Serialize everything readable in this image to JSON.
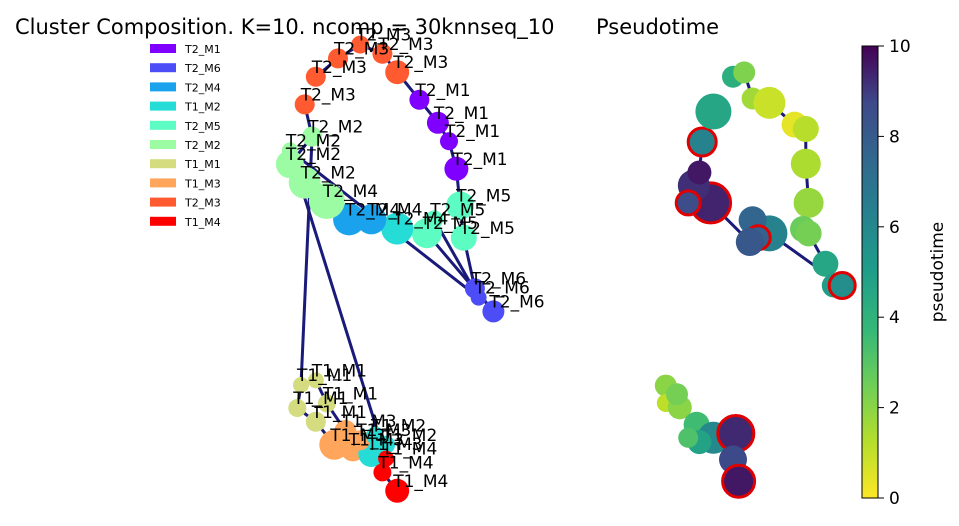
{
  "chart_data": [
    {
      "type": "scatter",
      "title": "Cluster Composition. K=10. ncomp = 30knnseq_10",
      "legend": {
        "placement": "top-left",
        "entries": [
          {
            "name": "T2_M1",
            "color": "#7f00ff"
          },
          {
            "name": "T2_M6",
            "color": "#4d4df8"
          },
          {
            "name": "T2_M4",
            "color": "#1aa3ec"
          },
          {
            "name": "T1_M2",
            "color": "#26dcd6"
          },
          {
            "name": "T2_M5",
            "color": "#5cfcc2"
          },
          {
            "name": "T2_M2",
            "color": "#9cfca4"
          },
          {
            "name": "T1_M1",
            "color": "#d4dc7f"
          },
          {
            "name": "T1_M3",
            "color": "#ffa65c"
          },
          {
            "name": "T2_M3",
            "color": "#ff5a30"
          },
          {
            "name": "T1_M4",
            "color": "#ff0000"
          }
        ]
      },
      "edges": [
        [
          0,
          1
        ],
        [
          1,
          2
        ],
        [
          2,
          3
        ],
        [
          3,
          4
        ],
        [
          4,
          5
        ],
        [
          5,
          6
        ],
        [
          6,
          7
        ],
        [
          7,
          8
        ],
        [
          8,
          9
        ],
        [
          9,
          10
        ],
        [
          10,
          11
        ],
        [
          11,
          12
        ],
        [
          12,
          13
        ],
        [
          13,
          14
        ],
        [
          14,
          15
        ],
        [
          15,
          16
        ],
        [
          16,
          17
        ],
        [
          17,
          18
        ],
        [
          18,
          19
        ],
        [
          19,
          20
        ],
        [
          20,
          21
        ],
        [
          20,
          22
        ],
        [
          22,
          23
        ],
        [
          23,
          24
        ],
        [
          24,
          25
        ],
        [
          25,
          26
        ],
        [
          26,
          27
        ],
        [
          27,
          28
        ],
        [
          28,
          29
        ],
        [
          29,
          30
        ],
        [
          31,
          32
        ],
        [
          32,
          33
        ],
        [
          33,
          34
        ],
        [
          34,
          35
        ],
        [
          35,
          36
        ],
        [
          36,
          37
        ],
        [
          37,
          38
        ],
        [
          38,
          39
        ]
      ],
      "nodes": [
        {
          "x": 0.34,
          "y": 0.92,
          "r": 10,
          "group": "T2_M3",
          "labels": [
            "T2_M3"
          ]
        },
        {
          "x": 0.4,
          "y": 0.96,
          "r": 10,
          "group": "T2_M3",
          "labels": [
            "T2_M3"
          ]
        },
        {
          "x": 0.46,
          "y": 0.99,
          "r": 9,
          "group": "T2_M3",
          "labels": [
            "T2_M3"
          ]
        },
        {
          "x": 0.52,
          "y": 0.97,
          "r": 10,
          "group": "T2_M3",
          "labels": [
            "T2_M3"
          ]
        },
        {
          "x": 0.56,
          "y": 0.93,
          "r": 12,
          "group": "T2_M3",
          "labels": [
            "T2_M3"
          ]
        },
        {
          "x": 0.62,
          "y": 0.87,
          "r": 10,
          "group": "T2_M1",
          "labels": [
            "T2_M1"
          ]
        },
        {
          "x": 0.67,
          "y": 0.82,
          "r": 11,
          "group": "T2_M1",
          "labels": [
            "T2_M1"
          ]
        },
        {
          "x": 0.7,
          "y": 0.78,
          "r": 9,
          "group": "T2_M1",
          "labels": [
            "T2_M1"
          ]
        },
        {
          "x": 0.72,
          "y": 0.72,
          "r": 12,
          "group": "T2_M1",
          "labels": [
            "T2_M1"
          ]
        },
        {
          "x": 0.73,
          "y": 0.64,
          "r": 14,
          "group": "T2_M5",
          "labels": [
            "T2_M5"
          ]
        },
        {
          "x": 0.74,
          "y": 0.57,
          "r": 13,
          "group": "T2_M5",
          "labels": [
            "T2_M5"
          ]
        },
        {
          "x": 0.77,
          "y": 0.46,
          "r": 10,
          "group": "T2_M6",
          "labels": [
            "T2_M6"
          ]
        },
        {
          "x": 0.82,
          "y": 0.41,
          "r": 11,
          "group": "T2_M6",
          "labels": [
            "T2_M6"
          ]
        },
        {
          "x": 0.64,
          "y": 0.58,
          "r": 15,
          "group": "T2_M5",
          "labels": [
            "T2_M5"
          ]
        },
        {
          "x": 0.56,
          "y": 0.59,
          "r": 16,
          "group": "T1_M2",
          "labels": [
            "T2_M4"
          ]
        },
        {
          "x": 0.49,
          "y": 0.61,
          "r": 15,
          "group": "T2_M4",
          "labels": [
            "T2_M4"
          ]
        },
        {
          "x": 0.43,
          "y": 0.61,
          "r": 16,
          "group": "T2_M4",
          "labels": [
            "T2_M4"
          ]
        },
        {
          "x": 0.37,
          "y": 0.65,
          "r": 18,
          "group": "T2_M2",
          "labels": [
            "T2_M4"
          ]
        },
        {
          "x": 0.31,
          "y": 0.69,
          "r": 16,
          "group": "T2_M2",
          "labels": [
            "T2_M2"
          ]
        },
        {
          "x": 0.27,
          "y": 0.73,
          "r": 14,
          "group": "T2_M2",
          "labels": [
            "T2_M2"
          ]
        },
        {
          "x": 0.33,
          "y": 0.79,
          "r": 10,
          "group": "T2_M2",
          "labels": [
            "T2_M2"
          ]
        },
        {
          "x": 0.31,
          "y": 0.86,
          "r": 10,
          "group": "T2_M3",
          "labels": [
            "T2_M3"
          ]
        },
        {
          "x": 0.3,
          "y": 0.25,
          "r": 8,
          "group": "T1_M1",
          "labels": [
            "T1_M1"
          ]
        },
        {
          "x": 0.29,
          "y": 0.2,
          "r": 9,
          "group": "T1_M1",
          "labels": [
            "T1_M1"
          ]
        },
        {
          "x": 0.34,
          "y": 0.17,
          "r": 10,
          "group": "T1_M1",
          "labels": [
            "T1_M1"
          ]
        },
        {
          "x": 0.39,
          "y": 0.12,
          "r": 15,
          "group": "T1_M3",
          "labels": [
            "T1_M3"
          ]
        },
        {
          "x": 0.44,
          "y": 0.11,
          "r": 12,
          "group": "T1_M3",
          "labels": [
            "T1_M3"
          ]
        },
        {
          "x": 0.49,
          "y": 0.1,
          "r": 13,
          "group": "T1_M2",
          "labels": [
            "T1_M3"
          ]
        },
        {
          "x": 0.53,
          "y": 0.12,
          "r": 9,
          "group": "T1_M2",
          "labels": [
            "T1_M2"
          ]
        },
        {
          "x": 0.52,
          "y": 0.06,
          "r": 9,
          "group": "T1_M4",
          "labels": [
            "T1_M4"
          ]
        },
        {
          "x": 0.56,
          "y": 0.02,
          "r": 12,
          "group": "T1_M4",
          "labels": [
            "T1_M4"
          ]
        },
        {
          "x": 0.34,
          "y": 0.26,
          "r": 8,
          "group": "T1_M1",
          "labels": [
            "T1_M1"
          ]
        },
        {
          "x": 0.37,
          "y": 0.21,
          "r": 9,
          "group": "T1_M1",
          "labels": [
            "T1_M1"
          ]
        },
        {
          "x": 0.42,
          "y": 0.15,
          "r": 11,
          "group": "T1_M3",
          "labels": [
            "T1_M3"
          ]
        },
        {
          "x": 0.46,
          "y": 0.13,
          "r": 10,
          "group": "T1_M3",
          "labels": [
            "T1_M3"
          ]
        },
        {
          "x": 0.5,
          "y": 0.14,
          "r": 9,
          "group": "T1_M2",
          "labels": [
            "T1_M2"
          ]
        },
        {
          "x": 0.53,
          "y": 0.09,
          "r": 8,
          "group": "T1_M4",
          "labels": [
            "T1_M4"
          ]
        },
        {
          "x": 0.27,
          "y": 0.76,
          "r": 8,
          "group": "T2_M2",
          "labels": [
            "T2_M2"
          ]
        },
        {
          "x": 0.78,
          "y": 0.44,
          "r": 8,
          "group": "T2_M6",
          "labels": [
            "T2_M6"
          ]
        },
        {
          "x": 0.66,
          "y": 0.61,
          "r": 9,
          "group": "T2_M5",
          "labels": [
            "T2_M5"
          ]
        }
      ]
    },
    {
      "type": "scatter",
      "title": "Pseudotime",
      "colorbar": {
        "label": "pseudotime",
        "range": [
          0,
          10
        ],
        "ticks": [
          0,
          2,
          4,
          6,
          8,
          10
        ],
        "colormap": "viridis_r"
      },
      "edges": [
        [
          0,
          1
        ],
        [
          1,
          2
        ],
        [
          2,
          3
        ],
        [
          3,
          4
        ],
        [
          4,
          5
        ],
        [
          5,
          6
        ],
        [
          6,
          7
        ],
        [
          7,
          8
        ],
        [
          8,
          9
        ],
        [
          9,
          10
        ],
        [
          10,
          11
        ],
        [
          11,
          12
        ],
        [
          12,
          13
        ],
        [
          13,
          14
        ],
        [
          14,
          15
        ],
        [
          15,
          16
        ],
        [
          16,
          17
        ],
        [
          17,
          18
        ],
        [
          18,
          19
        ],
        [
          19,
          20
        ],
        [
          20,
          21
        ],
        [
          21,
          22
        ],
        [
          23,
          24
        ],
        [
          24,
          25
        ],
        [
          25,
          26
        ],
        [
          26,
          27
        ],
        [
          27,
          28
        ],
        [
          28,
          29
        ],
        [
          29,
          30
        ]
      ],
      "nodes": [
        {
          "x": 0.6,
          "y": 0.95,
          "pt": 4.2,
          "r": 11,
          "hi": false
        },
        {
          "x": 0.64,
          "y": 0.96,
          "pt": 2.2,
          "r": 11,
          "hi": false
        },
        {
          "x": 0.67,
          "y": 0.9,
          "pt": 1.6,
          "r": 11,
          "hi": false
        },
        {
          "x": 0.73,
          "y": 0.89,
          "pt": 0.9,
          "r": 16,
          "hi": false
        },
        {
          "x": 0.82,
          "y": 0.84,
          "pt": 0.4,
          "r": 13,
          "hi": false
        },
        {
          "x": 0.86,
          "y": 0.83,
          "pt": 1.2,
          "r": 13,
          "hi": false
        },
        {
          "x": 0.86,
          "y": 0.75,
          "pt": 1.4,
          "r": 15,
          "hi": false
        },
        {
          "x": 0.87,
          "y": 0.66,
          "pt": 1.8,
          "r": 15,
          "hi": false
        },
        {
          "x": 0.85,
          "y": 0.6,
          "pt": 2.6,
          "r": 13,
          "hi": false
        },
        {
          "x": 0.87,
          "y": 0.59,
          "pt": 2.4,
          "r": 13,
          "hi": false
        },
        {
          "x": 0.93,
          "y": 0.52,
          "pt": 4.6,
          "r": 13,
          "hi": false
        },
        {
          "x": 0.96,
          "y": 0.47,
          "pt": 5.1,
          "r": 12,
          "hi": false
        },
        {
          "x": 0.99,
          "y": 0.47,
          "pt": 5.7,
          "r": 13,
          "hi": true
        },
        {
          "x": 0.73,
          "y": 0.59,
          "pt": 6.2,
          "r": 18,
          "hi": false
        },
        {
          "x": 0.67,
          "y": 0.62,
          "pt": 7.6,
          "r": 14,
          "hi": false
        },
        {
          "x": 0.69,
          "y": 0.58,
          "pt": 7.8,
          "r": 12,
          "hi": true
        },
        {
          "x": 0.66,
          "y": 0.57,
          "pt": 8.2,
          "r": 14,
          "hi": false
        },
        {
          "x": 0.52,
          "y": 0.66,
          "pt": 9.4,
          "r": 20,
          "hi": true
        },
        {
          "x": 0.46,
          "y": 0.7,
          "pt": 9.2,
          "r": 16,
          "hi": false
        },
        {
          "x": 0.44,
          "y": 0.66,
          "pt": 8.6,
          "r": 12,
          "hi": true
        },
        {
          "x": 0.48,
          "y": 0.73,
          "pt": 9.6,
          "r": 12,
          "hi": false
        },
        {
          "x": 0.49,
          "y": 0.8,
          "pt": 6.2,
          "r": 14,
          "hi": true
        },
        {
          "x": 0.53,
          "y": 0.87,
          "pt": 4.6,
          "r": 18,
          "hi": false
        },
        {
          "x": 0.36,
          "y": 0.24,
          "pt": 2.0,
          "r": 11,
          "hi": false
        },
        {
          "x": 0.36,
          "y": 0.2,
          "pt": 1.1,
          "r": 9,
          "hi": false
        },
        {
          "x": 0.41,
          "y": 0.19,
          "pt": 2.0,
          "r": 12,
          "hi": false
        },
        {
          "x": 0.47,
          "y": 0.15,
          "pt": 3.5,
          "r": 13,
          "hi": false
        },
        {
          "x": 0.53,
          "y": 0.12,
          "pt": 6.0,
          "r": 16,
          "hi": false
        },
        {
          "x": 0.61,
          "y": 0.13,
          "pt": 9.3,
          "r": 18,
          "hi": true
        },
        {
          "x": 0.6,
          "y": 0.07,
          "pt": 8.7,
          "r": 14,
          "hi": false
        },
        {
          "x": 0.62,
          "y": 0.02,
          "pt": 9.6,
          "r": 16,
          "hi": true
        },
        {
          "x": 0.48,
          "y": 0.11,
          "pt": 4.8,
          "r": 12,
          "hi": false
        },
        {
          "x": 0.44,
          "y": 0.12,
          "pt": 3.2,
          "r": 10,
          "hi": false
        },
        {
          "x": 0.4,
          "y": 0.22,
          "pt": 2.4,
          "r": 11,
          "hi": false
        }
      ]
    }
  ]
}
